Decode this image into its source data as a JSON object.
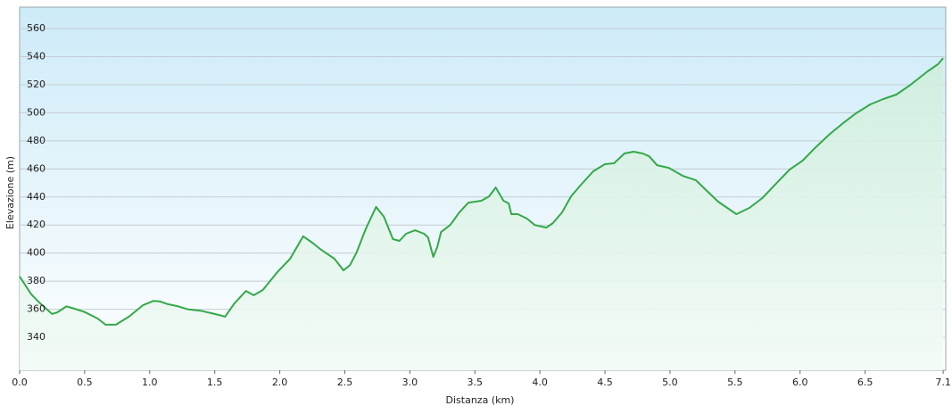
{
  "chart_data": {
    "type": "line",
    "x_label": "Distanza  (km)",
    "y_label": "Elevazione (m)",
    "x": [
      0,
      0.09,
      0.16,
      0.25,
      0.29,
      0.36,
      0.4,
      0.5,
      0.6,
      0.66,
      0.74,
      0.84,
      0.95,
      1.03,
      1.08,
      1.14,
      1.22,
      1.29,
      1.39,
      1.5,
      1.58,
      1.65,
      1.74,
      1.8,
      1.87,
      1.98,
      2.08,
      2.18,
      2.25,
      2.32,
      2.42,
      2.49,
      2.54,
      2.59,
      2.66,
      2.74,
      2.8,
      2.87,
      2.92,
      2.97,
      3.04,
      3.11,
      3.14,
      3.18,
      3.21,
      3.24,
      3.31,
      3.38,
      3.45,
      3.55,
      3.61,
      3.66,
      3.72,
      3.76,
      3.78,
      3.83,
      3.9,
      3.96,
      4.05,
      4.1,
      4.17,
      4.24,
      4.31,
      4.41,
      4.5,
      4.57,
      4.65,
      4.72,
      4.79,
      4.84,
      4.9,
      4.99,
      5.1,
      5.2,
      5.27,
      5.37,
      5.44,
      5.51,
      5.61,
      5.71,
      5.82,
      5.92,
      6.02,
      6.12,
      6.23,
      6.33,
      6.43,
      6.54,
      6.64,
      6.74,
      6.85,
      6.98,
      7.06,
      7.1
    ],
    "series": [
      {
        "color": "#35a84a",
        "fill": "#dff5e6",
        "values": [
          383.3,
          370.6,
          364,
          356.6,
          357.8,
          362,
          361,
          358,
          353.4,
          349,
          349,
          354.7,
          363,
          366,
          365.5,
          363.6,
          362,
          360,
          359,
          356.6,
          354.7,
          364,
          373,
          370,
          373.7,
          386.4,
          396,
          412,
          407.4,
          402.3,
          396,
          387.7,
          391.5,
          400.4,
          417,
          432.9,
          426,
          410,
          408.7,
          413.8,
          416.3,
          413.8,
          411.2,
          397.3,
          404.2,
          415,
          420,
          429,
          436,
          437.3,
          440.5,
          446.8,
          437.3,
          435.4,
          427.8,
          427.8,
          424.6,
          420,
          418.2,
          421.4,
          429,
          440.5,
          448.1,
          458.3,
          463.4,
          464,
          471,
          472.3,
          471,
          469,
          462.7,
          460.8,
          455,
          451.9,
          445.6,
          436.7,
          432.2,
          427.8,
          432.2,
          439.2,
          450,
          459.6,
          465.9,
          475.4,
          485,
          492.6,
          499.6,
          506,
          509.8,
          513,
          520,
          529.5,
          534.6,
          539
        ]
      }
    ],
    "xlim": [
      0,
      7.12
    ],
    "ylim": [
      316.5,
      575.3
    ],
    "xticks": [
      {
        "value": 0,
        "label": "0.0"
      },
      0.5,
      {
        "value": 1,
        "label": "1.0"
      },
      1.5,
      {
        "value": 2,
        "label": "2.0"
      },
      2.5,
      {
        "value": 3,
        "label": "3.0"
      },
      3.5,
      {
        "value": 4,
        "label": "4.0"
      },
      4.5,
      {
        "value": 5,
        "label": "5.0"
      },
      5.5,
      {
        "value": 6,
        "label": "6.0"
      },
      6.5,
      7.1
    ],
    "yticks": [
      340,
      360,
      380,
      400,
      420,
      440,
      460,
      480,
      500,
      520,
      540,
      560
    ],
    "grid": true
  }
}
